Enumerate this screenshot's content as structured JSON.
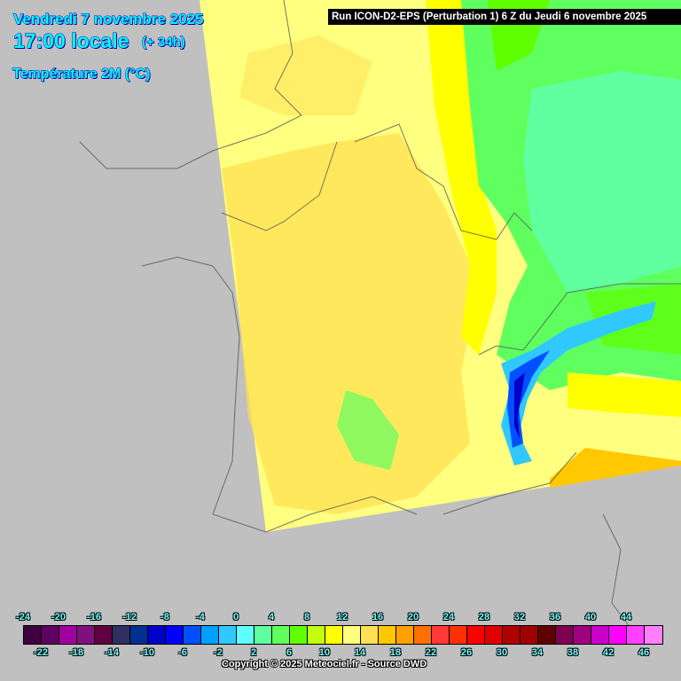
{
  "header": {
    "date": "Vendredi 7 novembre 2025",
    "time": "17:00 locale",
    "lead": "(+ 34h)",
    "parameter": "Température 2M (°C)",
    "run": "Run ICON-D2-EPS (Perturbation 1) 6 Z du Jeudi 6 novembre 2025"
  },
  "legend": {
    "values": [
      -24,
      -22,
      -20,
      -18,
      -16,
      -14,
      -12,
      -10,
      -8,
      -6,
      -4,
      -2,
      0,
      2,
      4,
      6,
      8,
      10,
      12,
      14,
      16,
      18,
      20,
      22,
      24,
      26,
      28,
      30,
      32,
      34,
      36,
      38,
      40,
      42,
      44,
      46
    ],
    "labels": [
      "-24",
      "-22",
      "-20",
      "-18",
      "-16",
      "-14",
      "-12",
      "-10",
      "-8",
      "-6",
      "-4",
      "-2",
      "0",
      "2",
      "4",
      "6",
      "8",
      "10",
      "12",
      "14",
      "16",
      "18",
      "20",
      "22",
      "24",
      "26",
      "28",
      "30",
      "32",
      "34",
      "36",
      "38",
      "40",
      "42",
      "44",
      "46"
    ],
    "colors": [
      "#400040",
      "#600060",
      "#a000a0",
      "#801080",
      "#600040",
      "#303060",
      "#003090",
      "#0000c8",
      "#0000ff",
      "#0050ff",
      "#00a0ff",
      "#30c8ff",
      "#60ffff",
      "#60ffa0",
      "#60ff60",
      "#60ff00",
      "#c0ff10",
      "#ffff00",
      "#ffff80",
      "#ffe050",
      "#ffc800",
      "#ffa000",
      "#ff7000",
      "#ff3838",
      "#ff3000",
      "#ff0000",
      "#e00000",
      "#b00000",
      "#a00000",
      "#600000",
      "#800050",
      "#a00080",
      "#c800c8",
      "#ff00ff",
      "#ff40ff",
      "#ff80ff"
    ]
  },
  "footer": {
    "copyright": "Copyright © 2025 Meteociel.fr - Source DWD"
  },
  "colors": {
    "background": "#c0c0c0",
    "title_text": "#00ffff",
    "run_bar": "#000000"
  }
}
